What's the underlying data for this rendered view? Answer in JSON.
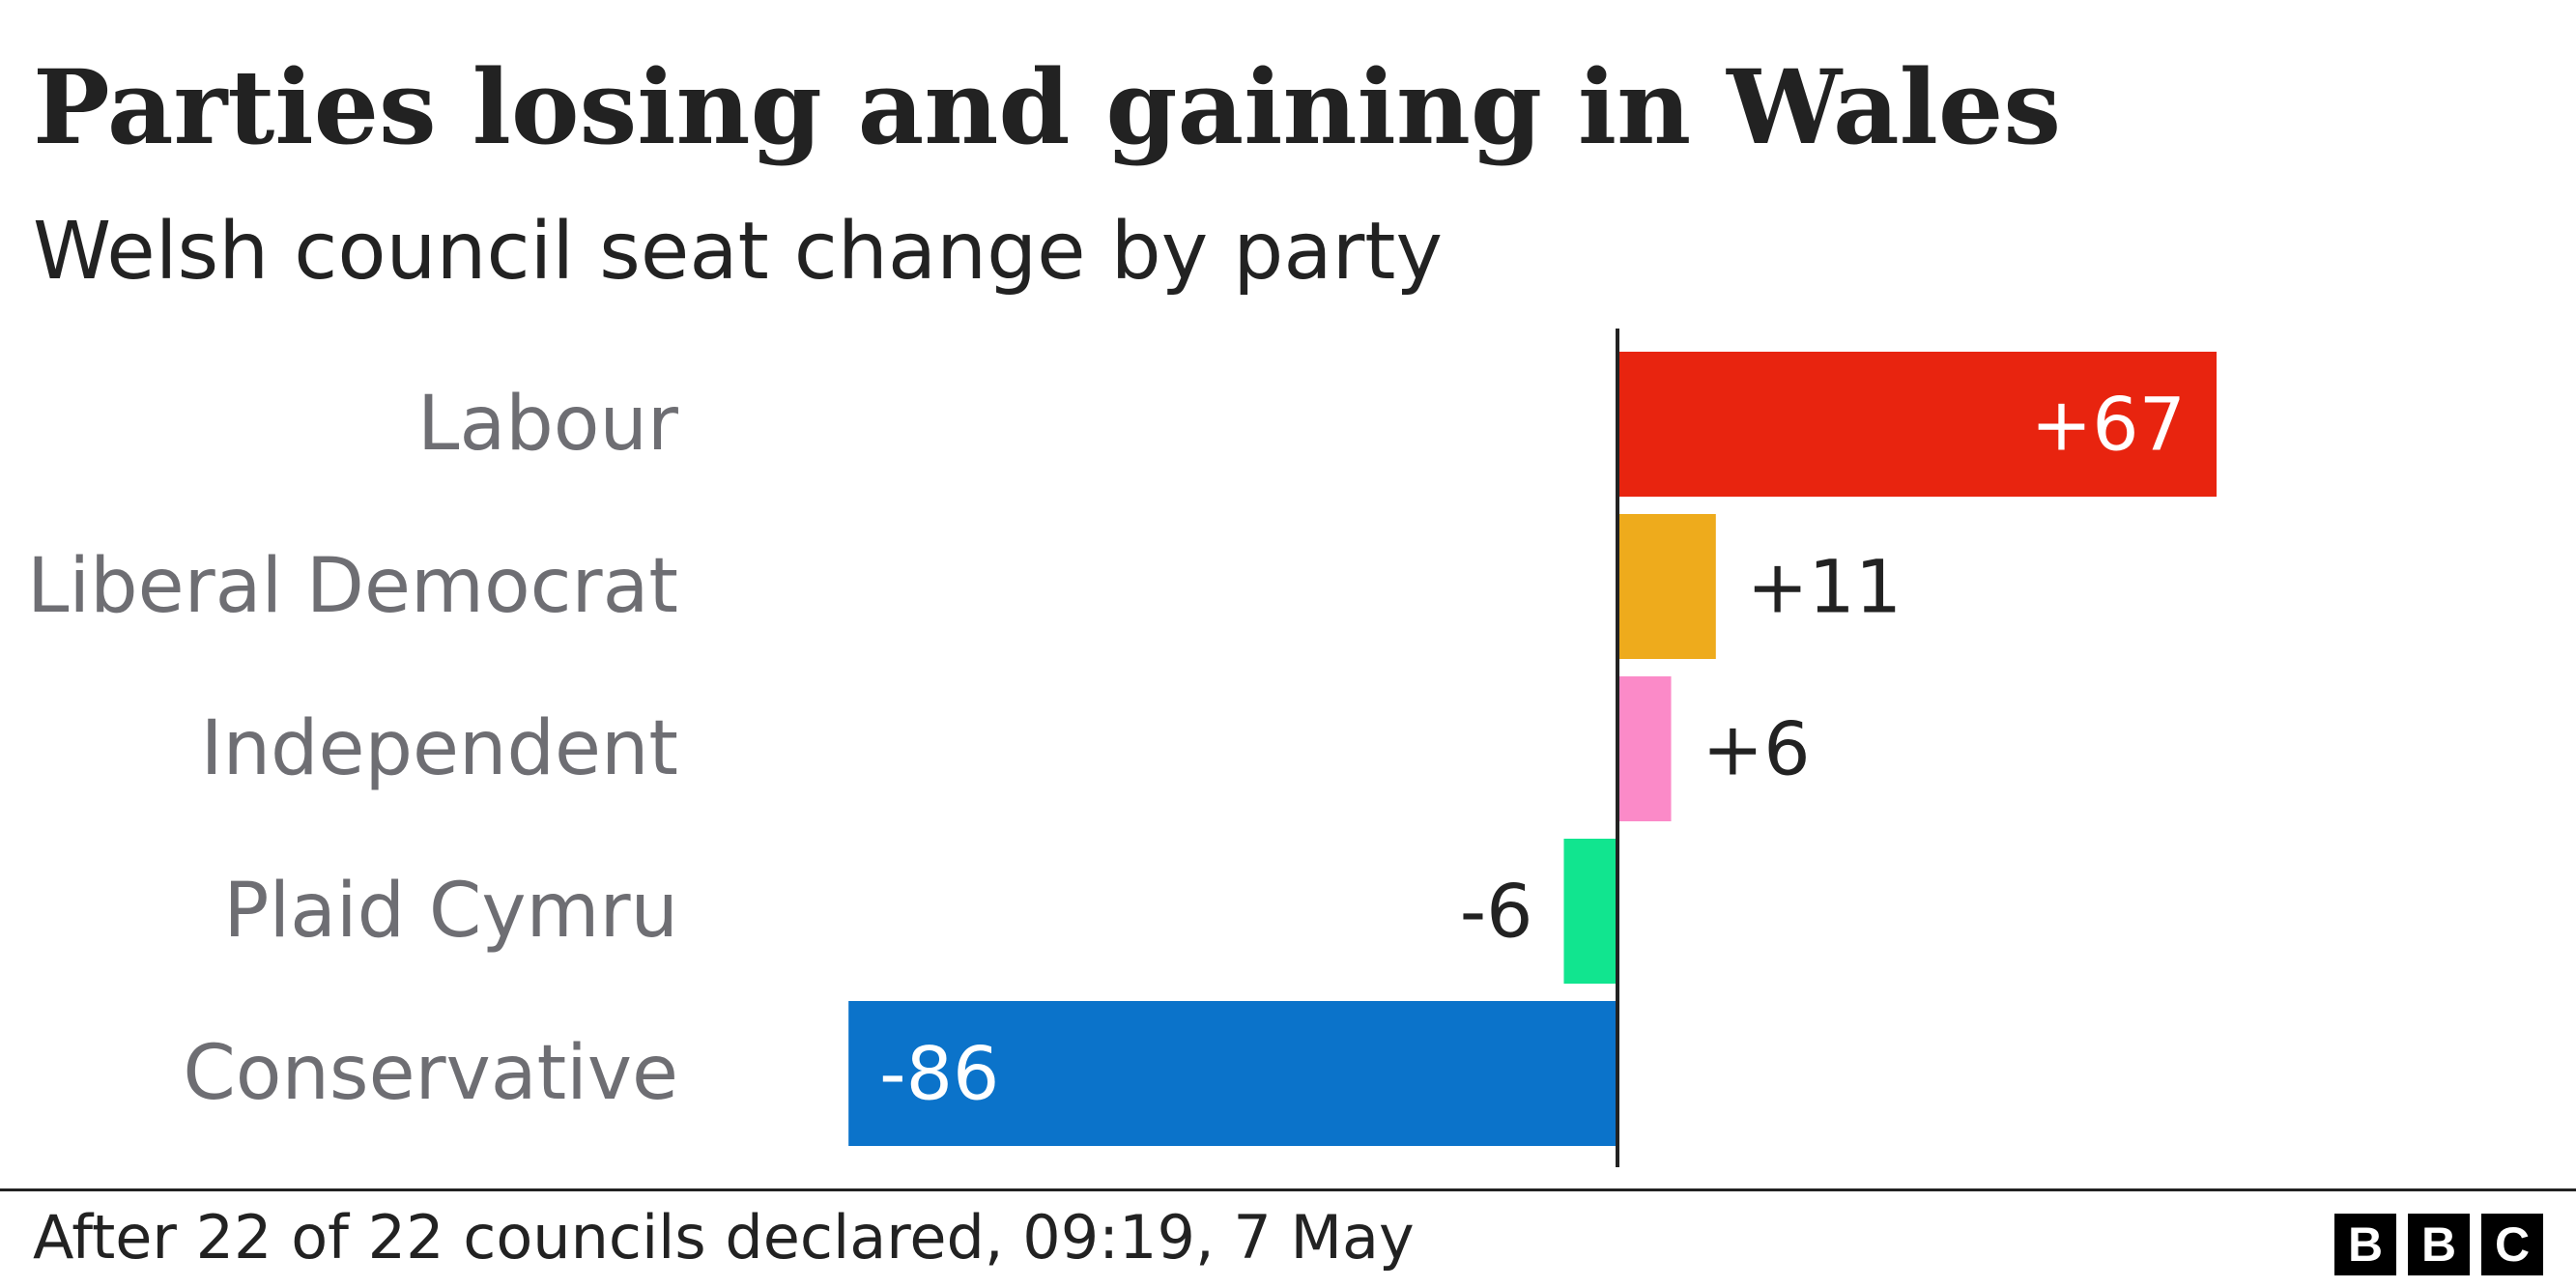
{
  "chart_data": {
    "type": "bar",
    "orientation": "horizontal",
    "title": "Parties losing and gaining in Wales",
    "subtitle": "Welsh council seat change by party",
    "categories": [
      "Labour",
      "Liberal Democrat",
      "Independent",
      "Plaid Cymru",
      "Conservative"
    ],
    "values": [
      67,
      11,
      6,
      -6,
      -86
    ],
    "data_labels": [
      "+67",
      "+11",
      "+6",
      "-6",
      "-86"
    ],
    "colors": [
      "#e8240f",
      "#eeab1c",
      "#fb8ac8",
      "#11e58f",
      "#0b73ca"
    ],
    "xlim": [
      -86,
      67
    ],
    "grid": false,
    "legend": "none"
  },
  "footer": {
    "note": "After 22 of 22 councils declared, 09:19, 7 May",
    "logo_letters": [
      "B",
      "B",
      "C"
    ]
  }
}
